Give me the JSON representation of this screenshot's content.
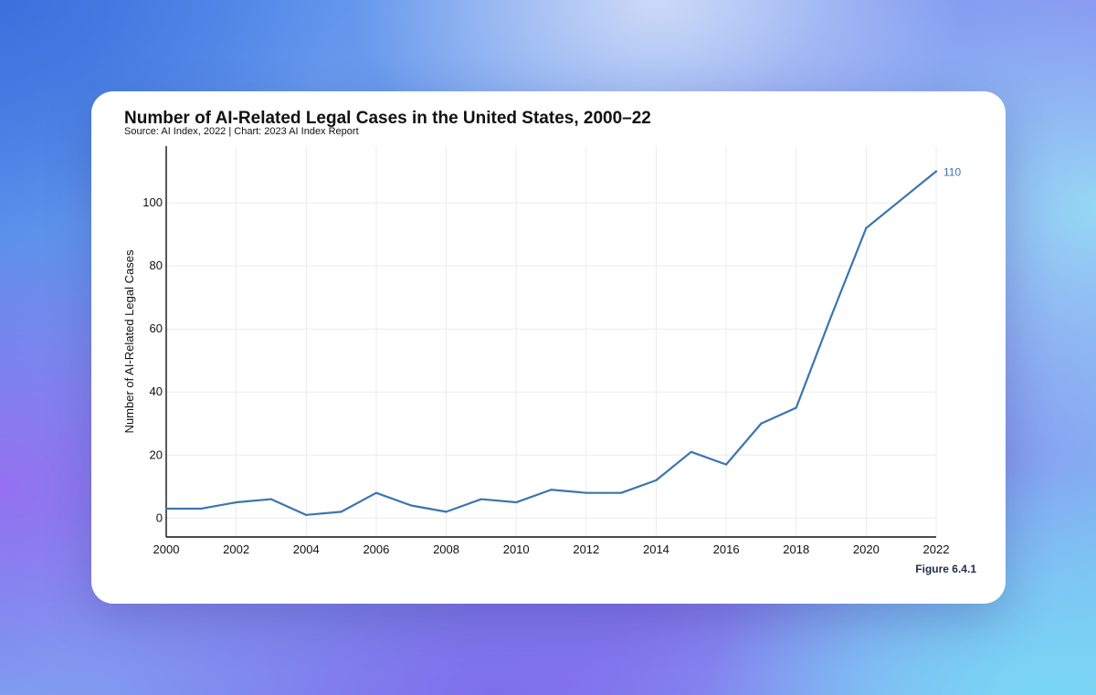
{
  "chart_data": {
    "type": "line",
    "title": "Number of AI-Related Legal Cases in the United States, 2000–22",
    "subtitle": "Source: AI Index, 2022 | Chart: 2023 AI Index Report",
    "xlabel": "",
    "ylabel": "Number of AI-Related Legal Cases",
    "x": [
      2000,
      2001,
      2002,
      2003,
      2004,
      2005,
      2006,
      2007,
      2008,
      2009,
      2010,
      2011,
      2012,
      2013,
      2014,
      2015,
      2016,
      2017,
      2018,
      2019,
      2020,
      2021,
      2022
    ],
    "series": [
      {
        "values": [
          3,
          3,
          5,
          6,
          1,
          2,
          8,
          4,
          2,
          6,
          5,
          9,
          8,
          8,
          12,
          21,
          17,
          30,
          35,
          64,
          92,
          101,
          110
        ],
        "color": "#3a76ad"
      }
    ],
    "x_ticks": [
      "2000",
      "2002",
      "2004",
      "2006",
      "2008",
      "2010",
      "2012",
      "2014",
      "2016",
      "2018",
      "2020",
      "2022"
    ],
    "y_ticks": [
      "0",
      "20",
      "40",
      "60",
      "80",
      "100"
    ],
    "xlim": [
      2000,
      2022
    ],
    "ylim": [
      -6,
      118
    ],
    "grid": true,
    "end_label": "110",
    "figure_label": "Figure 6.4.1"
  }
}
